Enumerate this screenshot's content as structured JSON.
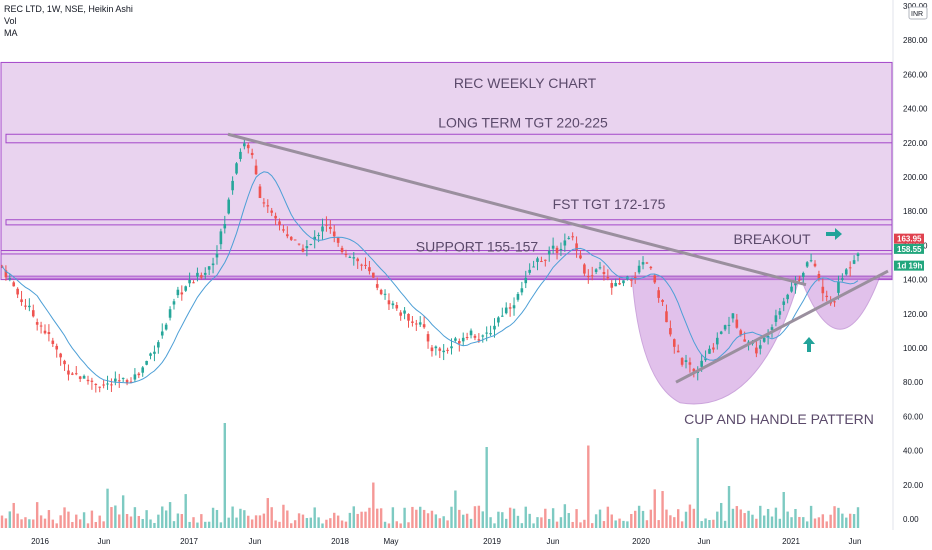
{
  "legend": {
    "symbol_line": "REC LTD, 1W, NSE, Heikin Ashi",
    "vol_label": "Vol",
    "ma_label": "MA"
  },
  "currency_badge": "INR",
  "colors": {
    "up": "#26a69a",
    "down": "#ef5350",
    "zone": "#e9d3ef",
    "zone_border": "#a347c9",
    "trendline": "#9a8f9e",
    "cup_fill": "#c98fdb",
    "ma": "#4d9fd6",
    "tag_red": "#e0424f",
    "tag_green": "#22a67d",
    "arrow": "#22a39a"
  },
  "chart_data": {
    "type": "candlestick",
    "price_axis": {
      "min": 0,
      "max": 300,
      "ticks": [
        0,
        20,
        40,
        60,
        80,
        100,
        120,
        140,
        160,
        180,
        200,
        220,
        240,
        260,
        280,
        300
      ],
      "tick_labels": [
        "0.00",
        "20.00",
        "40.00",
        "60.00",
        "80.00",
        "100.00",
        "120.00",
        "140.00",
        "160.00",
        "180.00",
        "200.00",
        "220.00",
        "240.00",
        "260.00",
        "280.00",
        "300.00"
      ]
    },
    "time_axis": {
      "labels": [
        "2016",
        "Jun",
        "2017",
        "Jun",
        "2018",
        "May",
        "2019",
        "Jun",
        "2020",
        "Jun",
        "2021",
        "Jun"
      ]
    },
    "price_path": [
      [
        0,
        148
      ],
      [
        8,
        130
      ],
      [
        20,
        110
      ],
      [
        30,
        88
      ],
      [
        38,
        82
      ],
      [
        48,
        78
      ],
      [
        56,
        80
      ],
      [
        64,
        85
      ],
      [
        75,
        110
      ],
      [
        82,
        132
      ],
      [
        90,
        140
      ],
      [
        98,
        150
      ],
      [
        104,
        175
      ],
      [
        108,
        205
      ],
      [
        112,
        220
      ],
      [
        115,
        218
      ],
      [
        120,
        190
      ],
      [
        126,
        175
      ],
      [
        132,
        168
      ],
      [
        138,
        158
      ],
      [
        144,
        160
      ],
      [
        150,
        175
      ],
      [
        156,
        160
      ],
      [
        162,
        155
      ],
      [
        170,
        145
      ],
      [
        178,
        130
      ],
      [
        186,
        120
      ],
      [
        194,
        115
      ],
      [
        200,
        100
      ],
      [
        206,
        98
      ],
      [
        212,
        105
      ],
      [
        218,
        110
      ],
      [
        224,
        104
      ],
      [
        232,
        120
      ],
      [
        240,
        130
      ],
      [
        248,
        150
      ],
      [
        254,
        155
      ],
      [
        260,
        160
      ],
      [
        266,
        165
      ],
      [
        272,
        140
      ],
      [
        278,
        145
      ],
      [
        284,
        135
      ],
      [
        290,
        138
      ],
      [
        296,
        145
      ],
      [
        300,
        150
      ],
      [
        306,
        130
      ],
      [
        312,
        100
      ],
      [
        318,
        90
      ],
      [
        322,
        85
      ],
      [
        328,
        95
      ],
      [
        334,
        110
      ],
      [
        340,
        118
      ],
      [
        346,
        105
      ],
      [
        352,
        98
      ],
      [
        358,
        115
      ],
      [
        364,
        130
      ],
      [
        370,
        140
      ],
      [
        374,
        150
      ],
      [
        378,
        148
      ],
      [
        382,
        130
      ],
      [
        386,
        125
      ],
      [
        390,
        140
      ],
      [
        394,
        148
      ],
      [
        398,
        158
      ]
    ],
    "volume_max": 80,
    "series": [
      {
        "name": "Vol"
      },
      {
        "name": "MA"
      }
    ],
    "last_price": "163.95",
    "prev_price": "158.55",
    "tag_time": "1d 19h",
    "horizontal_zones": [
      {
        "low": 220,
        "high": 225,
        "label": "LONG TERM TGT 220-225"
      },
      {
        "low": 172,
        "high": 175,
        "label": "FST TGT 172-175"
      },
      {
        "low": 155,
        "high": 157,
        "label": "SUPPORT 155-157"
      },
      {
        "low": 141,
        "high": 142,
        "label": ""
      }
    ],
    "big_zone": {
      "low": 140,
      "high": 267
    },
    "annotations": {
      "title": "REC WEEKLY CHART",
      "breakout": "BREAKOUT",
      "pattern": "CUP AND HANDLE PATTERN"
    }
  }
}
